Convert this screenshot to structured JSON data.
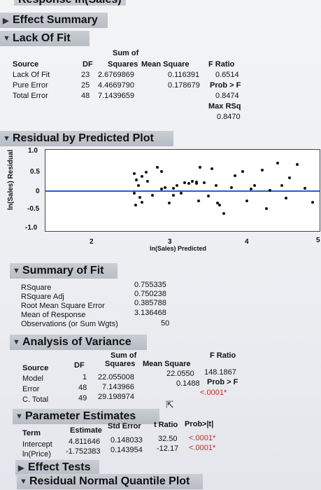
{
  "top_cut_title": "Response ln(Sales)",
  "sections": {
    "effect_summary": "Effect Summary",
    "lack_of_fit": "Lack Of Fit",
    "residual_plot": "Residual by Predicted Plot",
    "summary_of_fit": "Summary of Fit",
    "anova": "Analysis of Variance",
    "param_est": "Parameter Estimates",
    "effect_tests": "Effect Tests",
    "resid_norm": "Residual Normal Quantile Plot"
  },
  "lof": {
    "headers": {
      "source": "Source",
      "df": "DF",
      "ss1": "Sum of",
      "ss2": "Squares",
      "ms": "Mean Square",
      "f": "F Ratio"
    },
    "rows": [
      {
        "source": "Lack Of Fit",
        "df": "23",
        "ss": "2.6769869",
        "ms": "0.116391",
        "f": "0.6514"
      },
      {
        "source": "Pure Error",
        "df": "25",
        "ss": "4.4669790",
        "ms": "0.178679",
        "f": "Prob > F"
      },
      {
        "source": "Total Error",
        "df": "48",
        "ss": "7.1439659",
        "ms": "",
        "f": "0.8474"
      }
    ],
    "max_rsq_label": "Max RSq",
    "max_rsq_value": "0.8470"
  },
  "plot": {
    "y_label": "ln(Sales) Residual",
    "x_label": "ln(Sales) Predicted",
    "y_ticks": [
      "1.0",
      "0.5",
      "0",
      "-0.5",
      "-1.0"
    ],
    "x_ticks": [
      "2",
      "3",
      "4",
      "5"
    ]
  },
  "chart_data": {
    "type": "scatter",
    "xlabel": "ln(Sales) Predicted",
    "ylabel": "ln(Sales) Residual",
    "xlim": [
      1.5,
      5
    ],
    "ylim": [
      -1.1,
      1.1
    ],
    "points": [
      [
        2.55,
        0.45
      ],
      [
        2.58,
        0.3
      ],
      [
        2.6,
        0.15
      ],
      [
        2.55,
        -0.05
      ],
      [
        2.57,
        -0.35
      ],
      [
        2.62,
        -0.15
      ],
      [
        2.65,
        0.38
      ],
      [
        2.7,
        0.5
      ],
      [
        2.72,
        0.25
      ],
      [
        2.78,
        -0.1
      ],
      [
        2.85,
        0.62
      ],
      [
        2.9,
        0.52
      ],
      [
        2.95,
        0.1
      ],
      [
        3.0,
        -0.3
      ],
      [
        3.05,
        0.08
      ],
      [
        3.1,
        0.15
      ],
      [
        3.15,
        -0.05
      ],
      [
        3.2,
        0.22
      ],
      [
        3.25,
        0.2
      ],
      [
        3.3,
        0.25
      ],
      [
        3.35,
        0.24
      ],
      [
        3.38,
        -0.25
      ],
      [
        3.4,
        0.62
      ],
      [
        3.45,
        0.22
      ],
      [
        3.55,
        0.58
      ],
      [
        3.6,
        0.15
      ],
      [
        3.62,
        -0.3
      ],
      [
        3.65,
        -0.35
      ],
      [
        3.7,
        -0.58
      ],
      [
        3.85,
        0.4
      ],
      [
        3.95,
        0.52
      ],
      [
        4.0,
        -0.25
      ],
      [
        4.05,
        0.05
      ],
      [
        4.1,
        0.15
      ],
      [
        4.2,
        0.55
      ],
      [
        4.25,
        -0.45
      ],
      [
        4.3,
        0.02
      ],
      [
        4.4,
        0.72
      ],
      [
        4.5,
        -0.18
      ],
      [
        4.55,
        0.35
      ],
      [
        4.65,
        0.7
      ],
      [
        4.75,
        0.08
      ],
      [
        4.85,
        -0.28
      ],
      [
        2.9,
        0.05
      ],
      [
        3.05,
        -0.1
      ],
      [
        3.35,
        0.2
      ],
      [
        2.65,
        -0.28
      ],
      [
        3.8,
        0.1
      ],
      [
        4.45,
        0.15
      ],
      [
        3.5,
        -0.12
      ]
    ]
  },
  "sof": {
    "labels": [
      "RSquare",
      "RSquare Adj",
      "Root Mean Square Error",
      "Mean of Response",
      "Observations (or Sum Wgts)"
    ],
    "values": [
      "0.755335",
      "0.750238",
      "0.385788",
      "3.136468",
      "50"
    ]
  },
  "anova": {
    "headers": {
      "source": "Source",
      "df": "DF",
      "ss1": "Sum of",
      "ss2": "Squares",
      "ms": "Mean Square",
      "f": "F Ratio"
    },
    "rows": [
      {
        "source": "Model",
        "df": "1",
        "ss": "22.055008",
        "ms": "22.0550",
        "f": "148.1867"
      },
      {
        "source": "Error",
        "df": "48",
        "ss": "7.143966",
        "ms": "0.1488",
        "f": "Prob > F"
      },
      {
        "source": "C. Total",
        "df": "49",
        "ss": "29.198974",
        "ms": "",
        "f": "<.0001*"
      }
    ]
  },
  "params": {
    "headers": {
      "term": "Term",
      "est": "Estimate",
      "se": "Std Error",
      "t": "t Ratio",
      "p": "Prob>|t|"
    },
    "rows": [
      {
        "term": "Intercept",
        "est": "4.811646",
        "se": "0.148033",
        "t": "32.50",
        "p": "<.0001*"
      },
      {
        "term": "ln(Price)",
        "est": "-1.752383",
        "se": "0.143954",
        "t": "-12.17",
        "p": "<.0001*"
      }
    ]
  }
}
